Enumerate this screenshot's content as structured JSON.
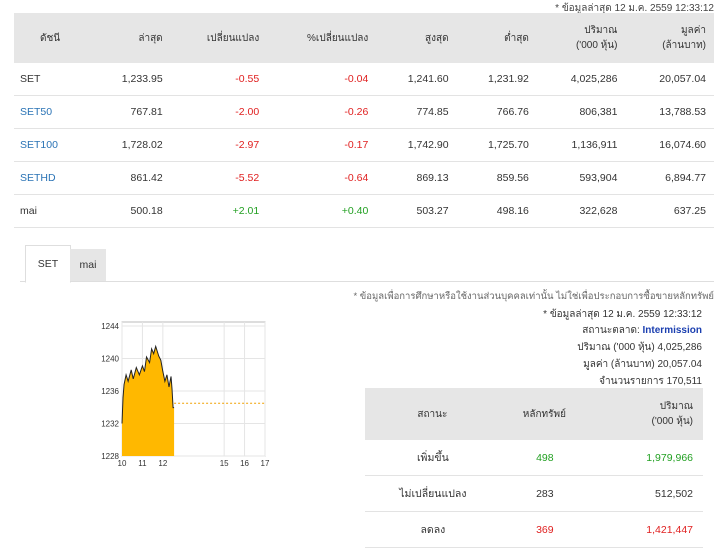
{
  "header_note": "* ข้อมูลล่าสุด 12 ม.ค. 2559 12:33:12",
  "index_table": {
    "columns": [
      "ดัชนี",
      "ล่าสุด",
      "เปลี่ยนแปลง",
      "%เปลี่ยนแปลง",
      "สูงสุด",
      "ต่ำสุด",
      "ปริมาณ\n('000 หุ้น)",
      "มูลค่า\n(ล้านบาท)"
    ],
    "rows": [
      {
        "name": "SET",
        "last": "1,233.95",
        "change": "-0.55",
        "pct": "-0.04",
        "high": "1,241.60",
        "low": "1,231.92",
        "volume": "4,025,286",
        "value": "20,057.04"
      },
      {
        "name": "SET50",
        "last": "767.81",
        "change": "-2.00",
        "pct": "-0.26",
        "high": "774.85",
        "low": "766.76",
        "volume": "806,381",
        "value": "13,788.53"
      },
      {
        "name": "SET100",
        "last": "1,728.02",
        "change": "-2.97",
        "pct": "-0.17",
        "high": "1,742.90",
        "low": "1,725.70",
        "volume": "1,136,911",
        "value": "16,074.60"
      },
      {
        "name": "SETHD",
        "last": "861.42",
        "change": "-5.52",
        "pct": "-0.64",
        "high": "869.13",
        "low": "859.56",
        "volume": "593,904",
        "value": "6,894.77"
      },
      {
        "name": "mai",
        "last": "500.18",
        "change": "+2.01",
        "pct": "+0.40",
        "high": "503.27",
        "low": "498.16",
        "volume": "322,628",
        "value": "637.25"
      }
    ]
  },
  "tabs": [
    "SET",
    "mai"
  ],
  "disclaimer": "* ข้อมูลเพื่อการศึกษาหรือใช้งานส่วนบุคคลเท่านั้น ไม่ใช่เพื่อประกอบการซื้อขายหลักทรัพย์",
  "info": {
    "updated": "* ข้อมูลล่าสุด 12 ม.ค. 2559 12:33:12",
    "status_label": "สถานะตลาด:",
    "status_value": "Intermission",
    "volume": "ปริมาณ ('000 หุ้น)  4,025,286",
    "value": "มูลค่า (ล้านบาท)  20,057.04",
    "trades": "จำนวนรายการ  170,511"
  },
  "advance_decline": {
    "columns": [
      "สถานะ",
      "หลักทรัพย์",
      "ปริมาณ\n('000 หุ้น)"
    ],
    "rows": [
      {
        "status": "เพิ่มขึ้น",
        "securities": "498",
        "volume": "1,979,966",
        "color": "#22a022"
      },
      {
        "status": "ไม่เปลี่ยนแปลง",
        "securities": "283",
        "volume": "512,502",
        "color": "#333333"
      },
      {
        "status": "ลดลง",
        "securities": "369",
        "volume": "1,421,447",
        "color": "#e02020"
      }
    ]
  },
  "chart_data": {
    "type": "area",
    "x_ticks": [
      "10",
      "11",
      "12",
      "15",
      "16",
      "17"
    ],
    "y_ticks": [
      "1244",
      "1240",
      "1236",
      "1232",
      "1228"
    ],
    "ylim": [
      1228,
      1244.5
    ],
    "xlim": [
      10,
      17
    ],
    "grid": true,
    "reference_line": 1234.5,
    "fill_color": "#ffb800",
    "x": [
      10.0,
      10.05,
      10.1,
      10.2,
      10.3,
      10.45,
      10.55,
      10.7,
      10.85,
      11.0,
      11.1,
      11.2,
      11.35,
      11.45,
      11.55,
      11.65,
      11.8,
      11.9,
      12.0,
      12.1,
      12.2,
      12.3,
      12.4,
      12.45,
      12.5,
      12.55
    ],
    "values": [
      1232.0,
      1235.2,
      1236.8,
      1238.0,
      1237.2,
      1238.6,
      1237.5,
      1238.9,
      1238.0,
      1239.1,
      1238.4,
      1240.2,
      1239.5,
      1241.2,
      1240.6,
      1241.5,
      1240.3,
      1239.8,
      1238.4,
      1237.2,
      1238.0,
      1236.5,
      1237.8,
      1236.2,
      1233.95,
      1233.95
    ]
  }
}
